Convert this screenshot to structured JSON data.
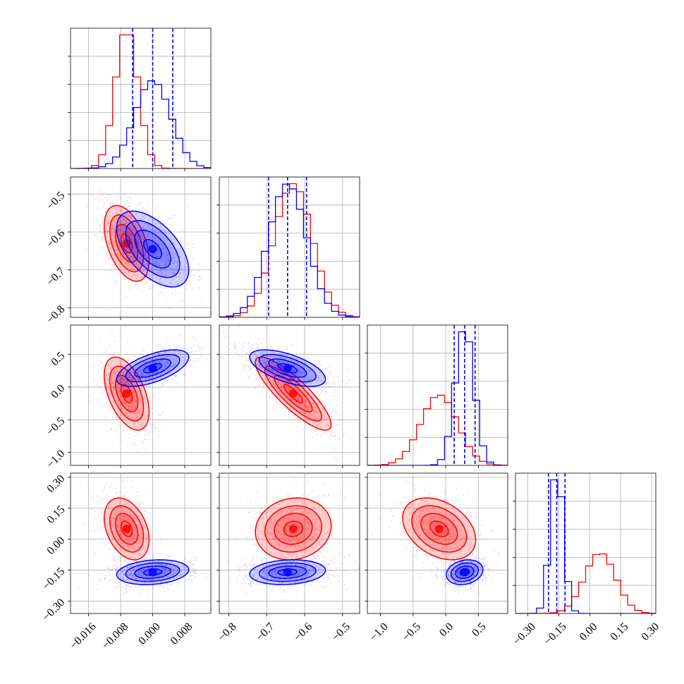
{
  "chart_data": {
    "type": "corner",
    "parameters": [
      {
        "ticks": [
          -0.016,
          -0.008,
          0.0,
          0.008
        ],
        "tick_labels": [
          "−0.016",
          "−0.008",
          "0.000",
          "0.008"
        ],
        "range": [
          -0.0205,
          0.0145
        ]
      },
      {
        "ticks": [
          -0.8,
          -0.7,
          -0.6,
          -0.5
        ],
        "tick_labels": [
          "−0.8",
          "−0.7",
          "−0.6",
          "−0.5"
        ],
        "range": [
          -0.825,
          -0.455
        ]
      },
      {
        "ticks": [
          -1.0,
          -0.5,
          0.0,
          0.5
        ],
        "tick_labels": [
          "−1.0",
          "−0.5",
          "0.0",
          "0.5"
        ],
        "range": [
          -1.2,
          0.95
        ]
      },
      {
        "ticks": [
          -0.3,
          -0.15,
          0.0,
          0.15,
          0.3
        ],
        "tick_labels": [
          "−0.30",
          "−0.15",
          "0.00",
          "0.15",
          "0.30"
        ],
        "range": [
          -0.36,
          0.32
        ]
      }
    ],
    "series": [
      {
        "color": "#ff0000",
        "mean": [
          -0.0065,
          -0.63,
          -0.1,
          0.05
        ],
        "std": [
          0.0028,
          0.05,
          0.28,
          0.075
        ],
        "corr": [
          [
            1,
            -0.45,
            -0.5,
            -0.35
          ],
          [
            -0.45,
            1,
            -0.85,
            0.1
          ],
          [
            -0.5,
            -0.85,
            1,
            -0.35
          ],
          [
            -0.35,
            0.1,
            -0.35,
            1
          ]
        ],
        "quantiles": []
      },
      {
        "color": "#0000ff",
        "mean": [
          0.0,
          -0.645,
          0.29,
          -0.16
        ],
        "std": [
          0.0045,
          0.05,
          0.14,
          0.03
        ],
        "corr": [
          [
            1,
            -0.55,
            0.6,
            0.2
          ],
          [
            -0.55,
            1,
            -0.6,
            0.15
          ],
          [
            0.6,
            -0.6,
            1,
            0.2
          ],
          [
            0.2,
            0.15,
            0.2,
            1
          ]
        ],
        "quantiles": [
          [
            -0.005,
            0.0,
            0.005
          ],
          [
            -0.695,
            -0.645,
            -0.595
          ],
          [
            0.13,
            0.29,
            0.45
          ],
          [
            -0.2,
            -0.16,
            -0.12
          ]
        ]
      }
    ],
    "contour_levels": [
      0.5,
      1.0,
      1.5,
      2.0
    ],
    "grid": true,
    "xlabels": [
      "",
      "",
      "",
      ""
    ],
    "ylabels": [
      "",
      "",
      "",
      ""
    ]
  }
}
